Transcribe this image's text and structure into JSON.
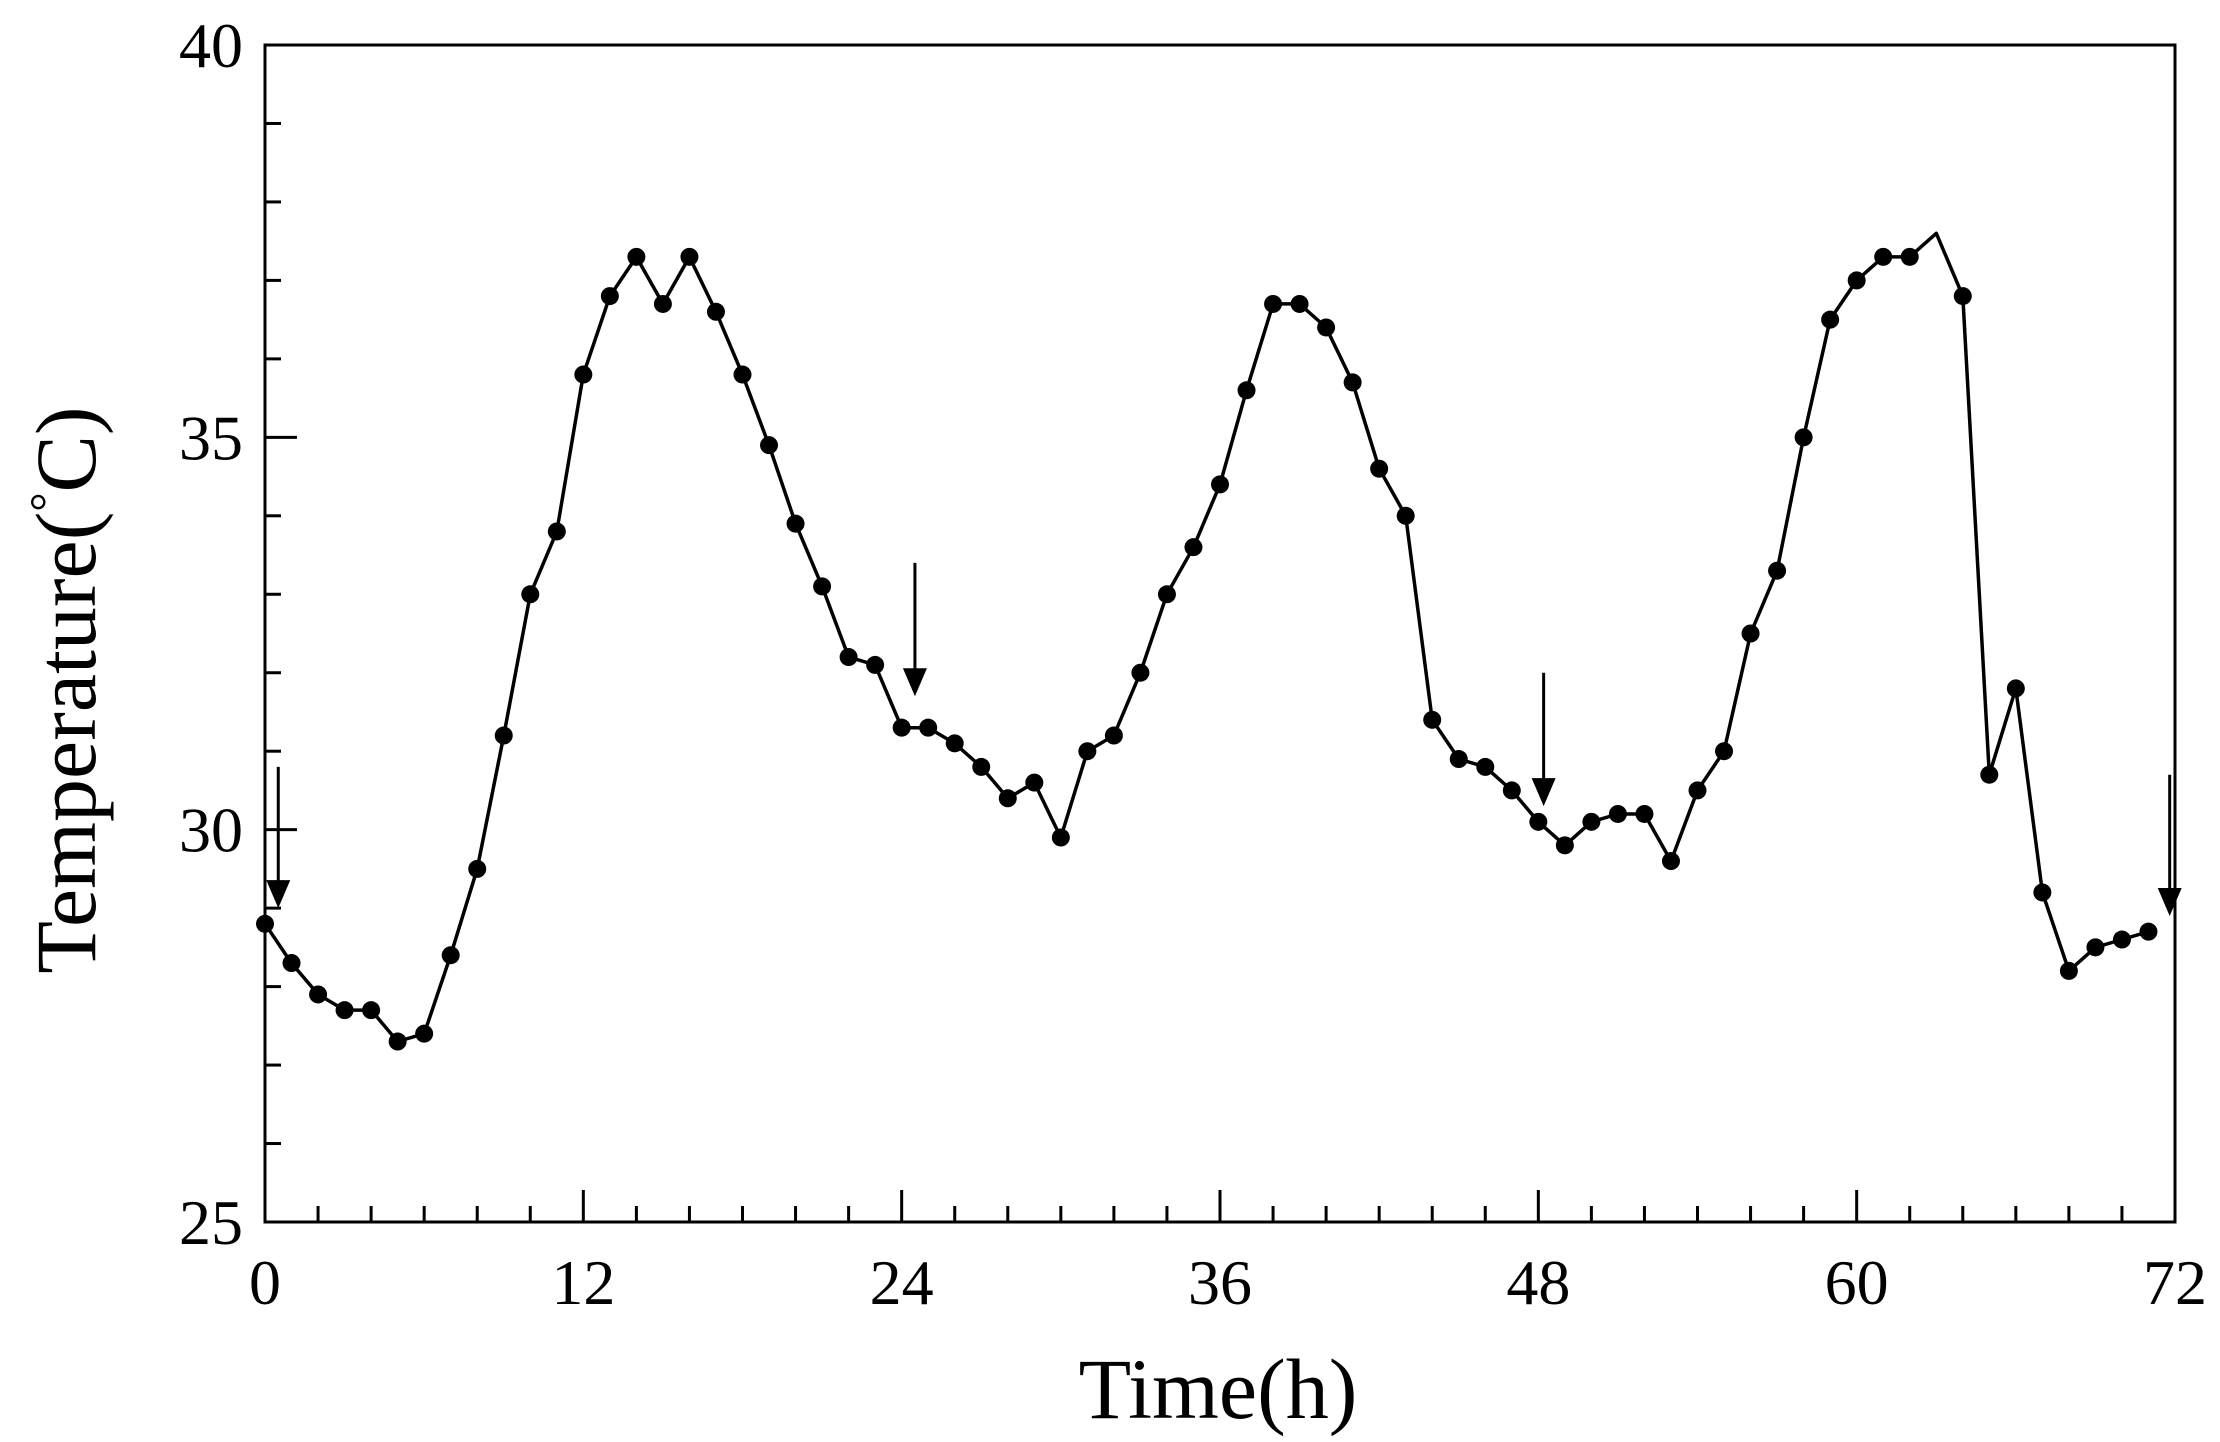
{
  "chart_data": {
    "type": "line",
    "xlabel": "Time(h)",
    "ylabel": "Temperature(°C)",
    "ylabel_parts": {
      "main": "Temperature(",
      "degree": "°",
      "unit": "C)"
    },
    "xlim": [
      0,
      72
    ],
    "ylim": [
      25,
      40
    ],
    "xticks": [
      0,
      12,
      24,
      36,
      48,
      60,
      72
    ],
    "yticks": [
      25,
      30,
      35,
      40
    ],
    "xtick_labels": [
      "0",
      "12",
      "24",
      "36",
      "48",
      "60",
      "72"
    ],
    "ytick_labels": [
      "25",
      "30",
      "35",
      "40"
    ],
    "x_minor_step": 2,
    "y_minor_step": 1,
    "grid": false,
    "legend": "none",
    "line_color": "#000000",
    "marker": "filled-circle",
    "series": [
      {
        "x": [
          0,
          1,
          2,
          3,
          4,
          5,
          6,
          7,
          8,
          9,
          10,
          11,
          12,
          13,
          14,
          15,
          16,
          17,
          18,
          19,
          20,
          21,
          22,
          23,
          24,
          25,
          26,
          27,
          28,
          29,
          30,
          31,
          32,
          33,
          34,
          35,
          36,
          37,
          38,
          39,
          40,
          41,
          42,
          43,
          44,
          45,
          46,
          47,
          48,
          49,
          50,
          51,
          52,
          53,
          54,
          55,
          56,
          57,
          58,
          59,
          60,
          61,
          62,
          63,
          64,
          65,
          66,
          67,
          68,
          69,
          70,
          71
        ],
        "y": [
          28.8,
          28.3,
          27.9,
          27.7,
          27.7,
          27.3,
          27.4,
          28.4,
          29.5,
          31.2,
          33.0,
          33.8,
          35.8,
          36.8,
          37.3,
          36.7,
          37.3,
          36.6,
          35.8,
          34.9,
          33.9,
          33.1,
          32.2,
          32.1,
          31.3,
          31.3,
          31.1,
          30.8,
          30.4,
          30.6,
          29.9,
          31.0,
          31.2,
          32.0,
          33.0,
          33.6,
          34.4,
          35.6,
          36.7,
          36.7,
          36.4,
          35.7,
          34.6,
          34.0,
          31.4,
          30.9,
          30.8,
          30.5,
          30.1,
          29.8,
          30.1,
          30.2,
          30.2,
          29.6,
          30.5,
          31.0,
          32.5,
          33.3,
          35.0,
          36.5,
          37.0,
          37.3,
          37.3,
          37.6,
          36.8,
          30.7,
          31.8,
          29.2,
          28.2,
          28.5,
          28.6,
          28.7
        ],
        "markers": [
          true,
          true,
          true,
          true,
          true,
          true,
          true,
          true,
          true,
          true,
          true,
          true,
          true,
          true,
          true,
          true,
          true,
          true,
          true,
          true,
          true,
          true,
          true,
          true,
          true,
          true,
          true,
          true,
          true,
          true,
          true,
          true,
          true,
          true,
          true,
          true,
          true,
          true,
          true,
          true,
          true,
          true,
          true,
          true,
          true,
          true,
          true,
          true,
          true,
          true,
          true,
          true,
          true,
          true,
          true,
          true,
          true,
          true,
          true,
          true,
          true,
          true,
          true,
          false,
          true,
          true,
          true,
          true,
          true,
          true,
          true,
          true
        ]
      }
    ],
    "annotations": [
      {
        "type": "down-arrow",
        "x": 0.5,
        "y_top": 30.8,
        "y_tip": 29.0
      },
      {
        "type": "down-arrow",
        "x": 24.5,
        "y_top": 33.4,
        "y_tip": 31.7
      },
      {
        "type": "down-arrow",
        "x": 48.2,
        "y_top": 32.0,
        "y_tip": 30.3
      },
      {
        "type": "down-arrow",
        "x": 71.8,
        "y_top": 30.7,
        "y_tip": 28.9
      }
    ]
  }
}
